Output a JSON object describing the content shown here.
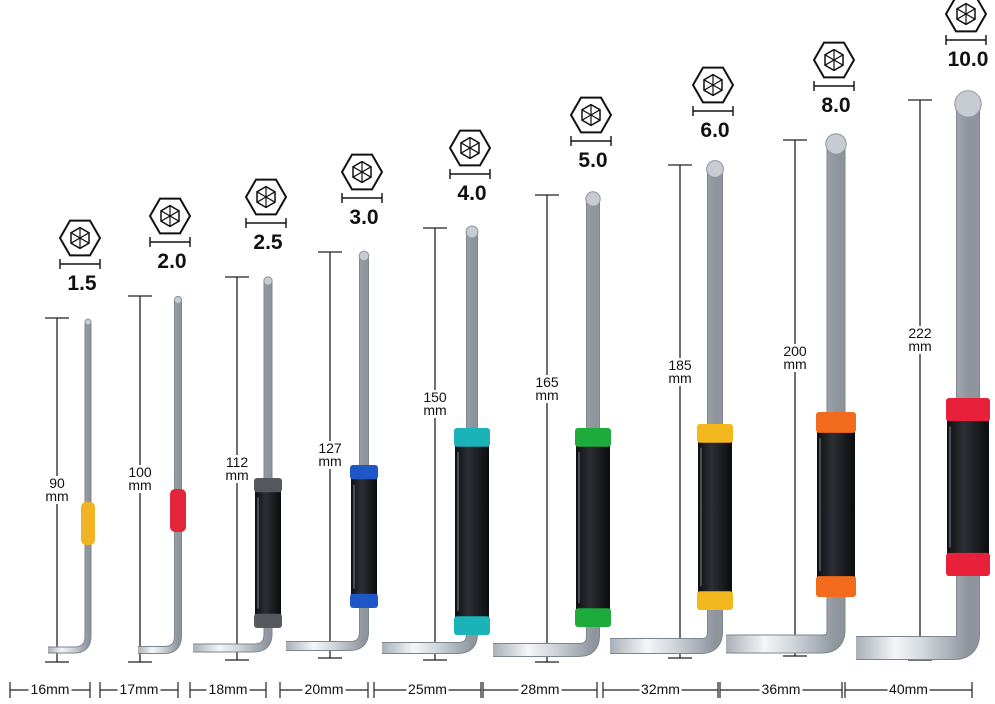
{
  "unit": "mm",
  "keys": [
    {
      "size": "1.5",
      "length": "90",
      "width": "16mm",
      "accent": "#f0b323",
      "handle": false
    },
    {
      "size": "2.0",
      "length": "100",
      "width": "17mm",
      "accent": "#e3253a",
      "handle": false
    },
    {
      "size": "2.5",
      "length": "112",
      "width": "18mm",
      "accent": "#55585e",
      "handle": true
    },
    {
      "size": "3.0",
      "length": "127",
      "width": "20mm",
      "accent": "#1f56c8",
      "handle": true
    },
    {
      "size": "4.0",
      "length": "150",
      "width": "25mm",
      "accent": "#19b3b8",
      "handle": true
    },
    {
      "size": "5.0",
      "length": "165",
      "width": "28mm",
      "accent": "#1dab3c",
      "handle": true
    },
    {
      "size": "6.0",
      "length": "185",
      "width": "32mm",
      "accent": "#f4b81f",
      "handle": true
    },
    {
      "size": "8.0",
      "length": "200",
      "width": "36mm",
      "accent": "#f26a1b",
      "handle": true
    },
    {
      "size": "10.0",
      "length": "222",
      "width": "40mm",
      "accent": "#e8203a",
      "handle": true
    }
  ]
}
